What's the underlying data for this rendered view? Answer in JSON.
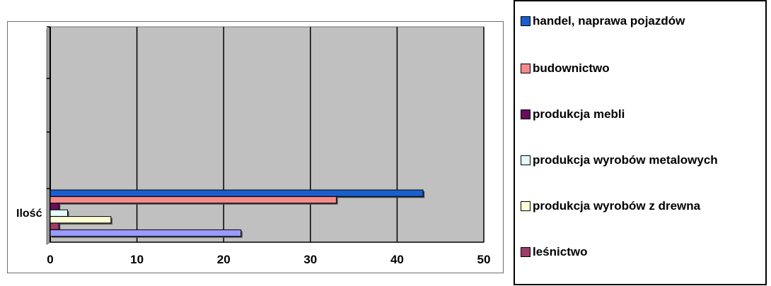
{
  "chart_data": {
    "type": "bar",
    "orientation": "horizontal",
    "categories": [
      "Ilość"
    ],
    "xlim": [
      0,
      50
    ],
    "xticks": [
      "0",
      "10",
      "20",
      "30",
      "40",
      "50"
    ],
    "grid": true,
    "legend_position": "right",
    "series": [
      {
        "name": "handel, naprawa pojazdów",
        "value": 43,
        "color": "#1a5fd0"
      },
      {
        "name": "budownictwo",
        "value": 33,
        "color": "#f48a8a"
      },
      {
        "name": "produkcja mebli",
        "value": 1,
        "color": "#6a0c5e"
      },
      {
        "name": "produkcja wyrobów metalowych",
        "value": 2,
        "color": "#e4fbff"
      },
      {
        "name": "produkcja wyrobów z drewna",
        "value": 7,
        "color": "#ffffd6"
      },
      {
        "name": "leśnictwo",
        "value": 1,
        "color": "#9b3c6a"
      },
      {
        "name": "",
        "value": 22,
        "color": "#9a9aff"
      }
    ]
  }
}
